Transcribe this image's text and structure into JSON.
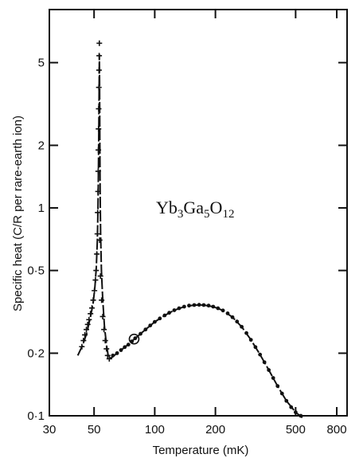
{
  "chart_data": {
    "type": "scatter",
    "xscale": "log",
    "yscale": "log",
    "xlim": [
      30,
      900
    ],
    "ylim": [
      0.1,
      9
    ],
    "xlabel": "Temperature (mK)",
    "ylabel": "Specific heat (C/R per rare-earth ion)",
    "x_tick_labels": [
      {
        "value": 30,
        "label": "30"
      },
      {
        "value": 50,
        "label": "50"
      },
      {
        "value": 100,
        "label": "100"
      },
      {
        "value": 200,
        "label": "200"
      },
      {
        "value": 500,
        "label": "500"
      },
      {
        "value": 800,
        "label": "800"
      }
    ],
    "y_tick_labels": [
      {
        "value": 0.1,
        "label": "0·1"
      },
      {
        "value": 0.2,
        "label": "0·2"
      },
      {
        "value": 0.5,
        "label": "0·5"
      },
      {
        "value": 1,
        "label": "1"
      },
      {
        "value": 2,
        "label": "2"
      },
      {
        "value": 5,
        "label": "5"
      }
    ],
    "annotation": {
      "parts": [
        {
          "text": "Yb",
          "sub": false
        },
        {
          "text": "3",
          "sub": true
        },
        {
          "text": "Ga",
          "sub": false
        },
        {
          "text": "5",
          "sub": true
        },
        {
          "text": "O",
          "sub": false
        },
        {
          "text": "12",
          "sub": true
        }
      ]
    },
    "grid": false,
    "series": [
      {
        "marker": "plus",
        "points": [
          [
            43.5,
            0.215
          ],
          [
            44.3,
            0.23
          ],
          [
            45,
            0.245
          ],
          [
            45.8,
            0.26
          ],
          [
            46.5,
            0.275
          ],
          [
            47.2,
            0.29
          ],
          [
            48,
            0.31
          ],
          [
            48.8,
            0.33
          ],
          [
            49.5,
            0.36
          ],
          [
            50.2,
            0.4
          ],
          [
            50.8,
            0.45
          ],
          [
            51.2,
            0.5
          ],
          [
            51.6,
            0.6
          ],
          [
            51.9,
            0.75
          ],
          [
            52.1,
            0.95
          ],
          [
            52.3,
            1.2
          ],
          [
            52.4,
            1.5
          ],
          [
            52.5,
            1.9
          ],
          [
            52.6,
            2.4
          ],
          [
            52.7,
            3.0
          ],
          [
            52.8,
            3.8
          ],
          [
            52.9,
            4.6
          ],
          [
            53.0,
            5.4
          ],
          [
            53.1,
            6.2
          ],
          [
            53.3,
            0.7
          ],
          [
            53.8,
            0.47
          ],
          [
            54.5,
            0.36
          ],
          [
            55.2,
            0.3
          ],
          [
            56,
            0.26
          ],
          [
            56.8,
            0.23
          ],
          [
            57.6,
            0.21
          ],
          [
            58.4,
            0.195
          ],
          [
            59.5,
            0.188
          ]
        ]
      },
      {
        "marker": "dot",
        "points": [
          [
            62,
            0.195
          ],
          [
            65,
            0.2
          ],
          [
            68,
            0.207
          ],
          [
            71,
            0.214
          ],
          [
            74,
            0.22
          ],
          [
            77,
            0.228
          ],
          [
            80,
            0.236
          ],
          [
            85,
            0.248
          ],
          [
            90,
            0.26
          ],
          [
            95,
            0.272
          ],
          [
            100,
            0.283
          ],
          [
            106,
            0.294
          ],
          [
            112,
            0.304
          ],
          [
            118,
            0.313
          ],
          [
            125,
            0.322
          ],
          [
            132,
            0.329
          ],
          [
            140,
            0.335
          ],
          [
            148,
            0.339
          ],
          [
            157,
            0.341
          ],
          [
            166,
            0.342
          ],
          [
            175,
            0.341
          ],
          [
            185,
            0.339
          ],
          [
            195,
            0.335
          ],
          [
            206,
            0.329
          ],
          [
            218,
            0.321
          ],
          [
            230,
            0.311
          ],
          [
            243,
            0.298
          ],
          [
            256,
            0.284
          ],
          [
            270,
            0.268
          ],
          [
            285,
            0.25
          ],
          [
            300,
            0.232
          ],
          [
            316,
            0.214
          ],
          [
            333,
            0.197
          ],
          [
            350,
            0.181
          ],
          [
            368,
            0.166
          ],
          [
            387,
            0.152
          ],
          [
            407,
            0.139
          ],
          [
            428,
            0.128
          ],
          [
            450,
            0.118
          ],
          [
            475,
            0.11
          ],
          [
            500,
            0.104
          ],
          [
            530,
            0.1
          ]
        ]
      },
      {
        "marker": "circle",
        "points": [
          [
            79,
            0.234
          ]
        ]
      }
    ],
    "fit_curve": [
      [
        41.5,
        0.195
      ],
      [
        44,
        0.22
      ],
      [
        46,
        0.25
      ],
      [
        48,
        0.3
      ],
      [
        49.5,
        0.35
      ],
      [
        50.5,
        0.42
      ],
      [
        51.3,
        0.52
      ],
      [
        51.9,
        0.7
      ],
      [
        52.3,
        1.0
      ],
      [
        52.6,
        1.6
      ],
      [
        52.8,
        2.6
      ],
      [
        53.0,
        4.2
      ],
      [
        53.1,
        5.5
      ],
      [
        53.25,
        4.0
      ],
      [
        53.4,
        2.2
      ],
      [
        53.6,
        1.2
      ],
      [
        53.9,
        0.75
      ],
      [
        54.4,
        0.5
      ],
      [
        55.2,
        0.36
      ],
      [
        56.3,
        0.27
      ],
      [
        57.6,
        0.22
      ],
      [
        59,
        0.19
      ],
      [
        61,
        0.19
      ],
      [
        65,
        0.2
      ],
      [
        72,
        0.216
      ],
      [
        80,
        0.236
      ],
      [
        90,
        0.26
      ],
      [
        100,
        0.283
      ],
      [
        112,
        0.304
      ],
      [
        125,
        0.322
      ],
      [
        140,
        0.335
      ],
      [
        157,
        0.341
      ],
      [
        175,
        0.341
      ],
      [
        195,
        0.335
      ],
      [
        218,
        0.321
      ],
      [
        243,
        0.298
      ],
      [
        270,
        0.268
      ],
      [
        300,
        0.232
      ],
      [
        333,
        0.197
      ],
      [
        368,
        0.166
      ],
      [
        407,
        0.139
      ],
      [
        450,
        0.118
      ],
      [
        500,
        0.104
      ],
      [
        540,
        0.098
      ]
    ]
  }
}
